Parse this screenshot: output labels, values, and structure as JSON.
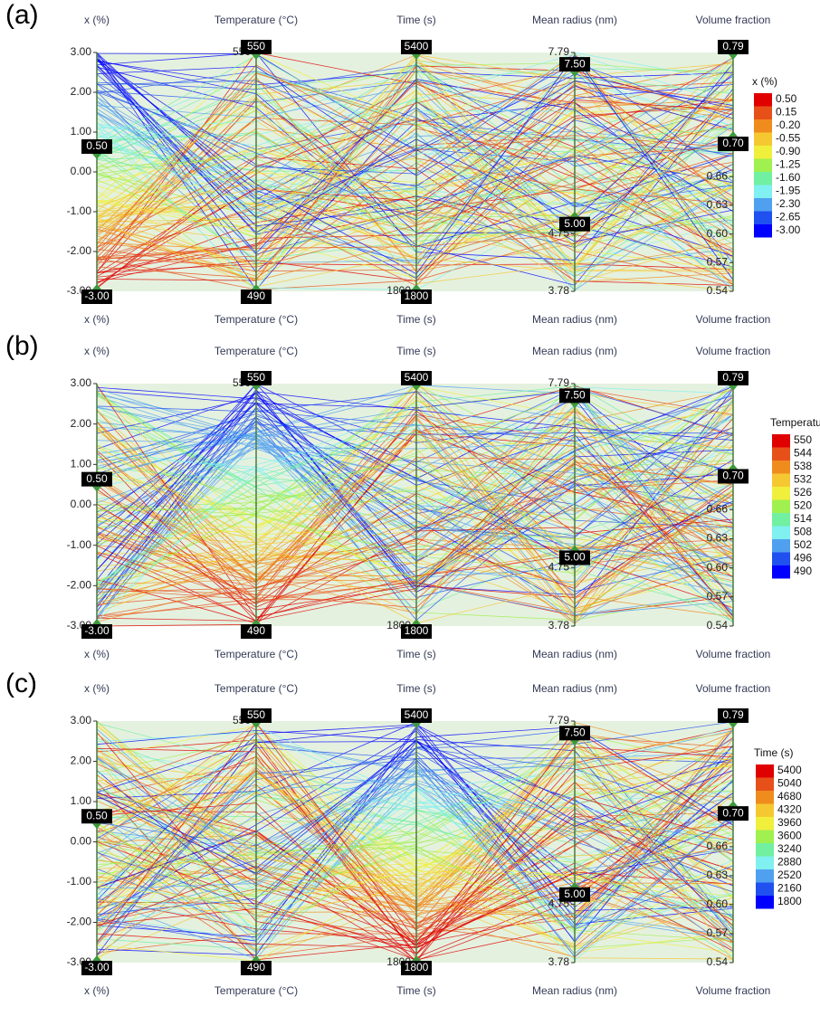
{
  "panels": [
    {
      "label": "(a)",
      "axes": [
        {
          "name": "x (%)",
          "lim": [
            -3,
            3
          ],
          "ticks": [
            "3.00",
            "2.00",
            "1.00",
            "0.00",
            "-1.00",
            "-2.00",
            "-3.00"
          ],
          "handles": [
            "0.50",
            "-3.00"
          ]
        },
        {
          "name": "Temperature (°C)",
          "lim": [
            490,
            550
          ],
          "ticks": [
            "550"
          ],
          "handles": [
            "550",
            "490"
          ]
        },
        {
          "name": "Time (s)",
          "lim": [
            1800,
            5400
          ],
          "ticks": [
            "1800"
          ],
          "handles": [
            "5400",
            "1800"
          ]
        },
        {
          "name": "Mean radius (nm)",
          "lim": [
            3.78,
            7.79
          ],
          "ticks": [
            "7.79",
            "4.75",
            "3.78"
          ],
          "handles": [
            "7.50",
            "5.00"
          ]
        },
        {
          "name": "Volume fraction",
          "lim": [
            0.54,
            0.79
          ],
          "ticks": [
            "0.66",
            "0.63",
            "0.60",
            "0.57",
            "0.54"
          ],
          "handles": [
            "0.79",
            "0.70"
          ]
        }
      ],
      "legend": {
        "title": "x (%)",
        "labels": [
          "0.50",
          "0.15",
          "-0.20",
          "-0.55",
          "-0.90",
          "-1.25",
          "-1.60",
          "-1.95",
          "-2.30",
          "-2.65",
          "-3.00"
        ]
      }
    },
    {
      "label": "(b)",
      "axes": [
        {
          "name": "x (%)",
          "lim": [
            -3,
            3
          ],
          "ticks": [
            "3.00",
            "2.00",
            "1.00",
            "0.00",
            "-1.00",
            "-2.00",
            "-3.00"
          ],
          "handles": [
            "0.50",
            "-3.00"
          ]
        },
        {
          "name": "Temperature (°C)",
          "lim": [
            490,
            550
          ],
          "ticks": [
            "550"
          ],
          "handles": [
            "550",
            "490"
          ]
        },
        {
          "name": "Time (s)",
          "lim": [
            1800,
            5400
          ],
          "ticks": [
            "1800"
          ],
          "handles": [
            "5400",
            "1800"
          ]
        },
        {
          "name": "Mean radius (nm)",
          "lim": [
            3.78,
            7.79
          ],
          "ticks": [
            "7.79",
            "4.75",
            "3.78"
          ],
          "handles": [
            "7.50",
            "5.00"
          ]
        },
        {
          "name": "Volume fraction",
          "lim": [
            0.54,
            0.79
          ],
          "ticks": [
            "0.66",
            "0.63",
            "0.60",
            "0.57",
            "0.54"
          ],
          "handles": [
            "0.79",
            "0.70"
          ]
        }
      ],
      "legend": {
        "title": "Temperature (°C)",
        "labels": [
          "550",
          "544",
          "538",
          "532",
          "526",
          "520",
          "514",
          "508",
          "502",
          "496",
          "490"
        ]
      }
    },
    {
      "label": "(c)",
      "axes": [
        {
          "name": "x (%)",
          "lim": [
            -3,
            3
          ],
          "ticks": [
            "3.00",
            "2.00",
            "1.00",
            "0.00",
            "-1.00",
            "-2.00",
            "-3.00"
          ],
          "handles": [
            "0.50",
            "-3.00"
          ]
        },
        {
          "name": "Temperature (°C)",
          "lim": [
            490,
            550
          ],
          "ticks": [
            "550"
          ],
          "handles": [
            "550",
            "490"
          ]
        },
        {
          "name": "Time (s)",
          "lim": [
            1800,
            5400
          ],
          "ticks": [
            "1800"
          ],
          "handles": [
            "5400",
            "1800"
          ]
        },
        {
          "name": "Mean radius (nm)",
          "lim": [
            3.78,
            7.79
          ],
          "ticks": [
            "7.79",
            "4.75",
            "3.78"
          ],
          "handles": [
            "7.50",
            "5.00"
          ]
        },
        {
          "name": "Volume fraction",
          "lim": [
            0.54,
            0.79
          ],
          "ticks": [
            "0.66",
            "0.63",
            "0.60",
            "0.57",
            "0.54"
          ],
          "handles": [
            "0.79",
            "0.70"
          ]
        }
      ],
      "legend": {
        "title": "Time (s)",
        "labels": [
          "5400",
          "5040",
          "4680",
          "4320",
          "3960",
          "3600",
          "3240",
          "2880",
          "2520",
          "2160",
          "1800"
        ]
      }
    }
  ],
  "palette": [
    "#e00000",
    "#e8501a",
    "#f08c1e",
    "#f5c832",
    "#f0f03c",
    "#a0f050",
    "#70f0a0",
    "#80f0f0",
    "#50a0f0",
    "#2050f0",
    "#0000ff"
  ]
}
